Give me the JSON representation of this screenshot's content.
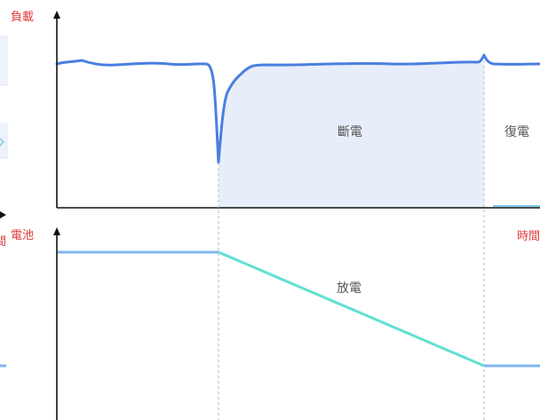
{
  "top_chart": {
    "y_axis_label": "負載",
    "outage_label": "斷電",
    "restore_label": "復電"
  },
  "bottom_chart": {
    "y_axis_label": "電池",
    "x_axis_label": "時間",
    "discharge_label": "放電",
    "left_edge_label": "間"
  },
  "colors": {
    "axis": "#111111",
    "load_line": "#4a7fe0",
    "outage_fill": "#e8eef9",
    "battery_full": "#7fb6f2",
    "battery_discharge": "#5fe0d2",
    "guide": "#bbbbbb",
    "axis_title": "#e03c3c"
  }
}
